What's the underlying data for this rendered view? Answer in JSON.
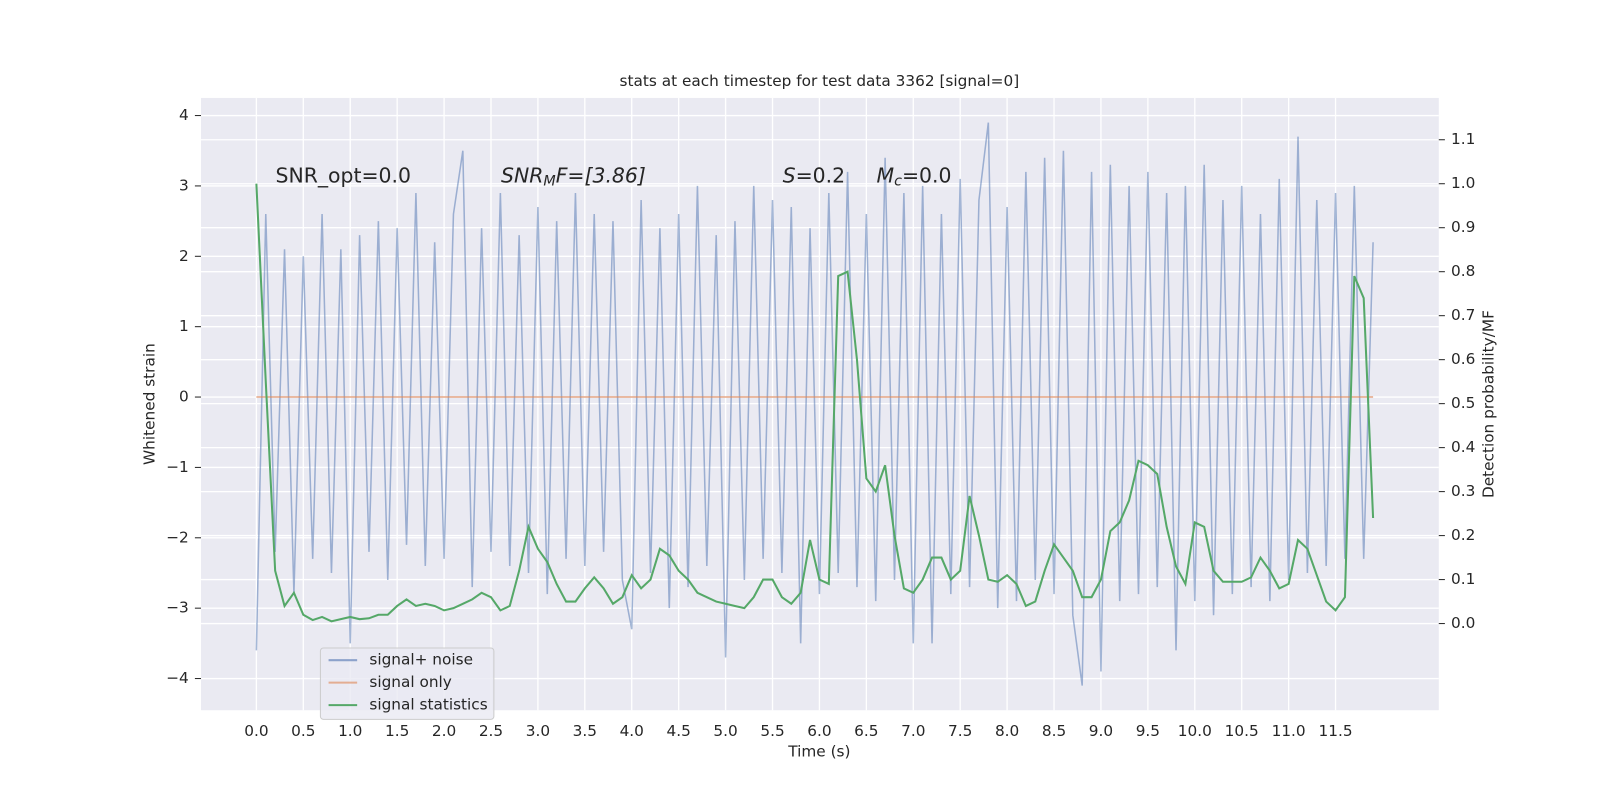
{
  "chart_data": {
    "type": "line",
    "title": "stats at each timestep for test data 3362 [signal=0]",
    "x_label": "Time (s)",
    "y_label": "Whitened strain",
    "y2_label": "Detection probability/MF",
    "annotations": [
      [
        "SNR_opt=0.0"
      ],
      [
        "SNR",
        "M",
        "F=[3.86]"
      ],
      [
        "S",
        "=0.2"
      ],
      [
        "M",
        "c",
        "=0.0"
      ]
    ],
    "xlim": [
      -0.59,
      12.6
    ],
    "ylim": [
      -4.45,
      4.25
    ],
    "y2lim": [
      -0.197,
      1.195
    ],
    "xticks": [
      {
        "value": 0,
        "label": "0.0"
      },
      0.5,
      {
        "value": 1,
        "label": "1.0"
      },
      1.5,
      {
        "value": 2,
        "label": "2.0"
      },
      2.5,
      {
        "value": 3,
        "label": "3.0"
      },
      3.5,
      {
        "value": 4,
        "label": "4.0"
      },
      4.5,
      {
        "value": 5,
        "label": "5.0"
      },
      5.5,
      {
        "value": 6,
        "label": "6.0"
      },
      6.5,
      {
        "value": 7,
        "label": "7.0"
      },
      7.5,
      {
        "value": 8,
        "label": "8.0"
      },
      8.5,
      {
        "value": 9,
        "label": "9.0"
      },
      9.5,
      {
        "value": 10,
        "label": "10.0"
      },
      10.5,
      {
        "value": 11,
        "label": "11.0"
      },
      11.5
    ],
    "yticks": [
      {
        "value": -4,
        "label": "−4"
      },
      {
        "value": -3,
        "label": "−3"
      },
      {
        "value": -2,
        "label": "−2"
      },
      {
        "value": -1,
        "label": "−1"
      },
      0,
      1,
      2,
      3,
      4
    ],
    "y2ticks": [
      {
        "value": 0,
        "label": "0.0"
      },
      0.1,
      0.2,
      0.3,
      0.4,
      0.5,
      0.6,
      0.7,
      0.8,
      0.9,
      {
        "value": 1,
        "label": "1.0"
      },
      1.1
    ],
    "grid": true,
    "legend": "lower left",
    "x": [
      0,
      0.1,
      0.2,
      0.3,
      0.4,
      0.5,
      0.6,
      0.7,
      0.8,
      0.9,
      1,
      1.1,
      1.2,
      1.3,
      1.4,
      1.5,
      1.6,
      1.7,
      1.8,
      1.9,
      2,
      2.1,
      2.2,
      2.3,
      2.4,
      2.5,
      2.6,
      2.7,
      2.8,
      2.9,
      3,
      3.1,
      3.2,
      3.3,
      3.4,
      3.5,
      3.6,
      3.7,
      3.8,
      3.9,
      4,
      4.1,
      4.2,
      4.3,
      4.4,
      4.5,
      4.6,
      4.7,
      4.8,
      4.9,
      5,
      5.1,
      5.2,
      5.3,
      5.4,
      5.5,
      5.6,
      5.7,
      5.8,
      5.9,
      6,
      6.1,
      6.2,
      6.3,
      6.4,
      6.5,
      6.6,
      6.7,
      6.8,
      6.9,
      7,
      7.1,
      7.2,
      7.3,
      7.4,
      7.5,
      7.6,
      7.7,
      7.8,
      7.9,
      8,
      8.1,
      8.2,
      8.3,
      8.4,
      8.5,
      8.6,
      8.7,
      8.8,
      8.9,
      9,
      9.1,
      9.2,
      9.3,
      9.4,
      9.5,
      9.6,
      9.7,
      9.8,
      9.9,
      10,
      10.1,
      10.2,
      10.3,
      10.4,
      10.5,
      10.6,
      10.7,
      10.8,
      10.9,
      11,
      11.1,
      11.2,
      11.3,
      11.4,
      11.5,
      11.6,
      11.7,
      11.8,
      11.9
    ],
    "series": [
      {
        "name": "signal+ noise",
        "color": "#4c72b0",
        "values": [
          -3.6,
          2.6,
          -2.2,
          2.1,
          -2.8,
          2.0,
          -2.3,
          2.6,
          -2.5,
          2.1,
          -3.5,
          2.3,
          -2.2,
          2.5,
          -2.6,
          2.4,
          -2.1,
          2.9,
          -2.4,
          2.2,
          -2.3,
          2.6,
          3.5,
          -2.7,
          2.4,
          -2.2,
          2.9,
          -2.4,
          2.3,
          -2.5,
          2.7,
          -2.8,
          2.5,
          -2.3,
          2.9,
          -2.4,
          2.6,
          -2.2,
          2.5,
          -2.6,
          -3.3,
          2.8,
          -2.5,
          2.4,
          -3.0,
          2.6,
          -2.7,
          3.0,
          -2.4,
          2.3,
          -3.7,
          2.5,
          -2.6,
          3.0,
          -2.3,
          2.8,
          -2.5,
          2.7,
          -3.5,
          2.4,
          -2.8,
          2.9,
          -2.5,
          3.2,
          -2.7,
          2.6,
          -2.9,
          3.4,
          -2.6,
          2.9,
          -3.5,
          3.0,
          -3.5,
          2.6,
          -2.8,
          3.1,
          -2.7,
          2.8,
          3.9,
          -3.0,
          2.7,
          -2.9,
          3.2,
          -2.6,
          3.4,
          -2.8,
          3.5,
          -3.1,
          -4.1,
          3.2,
          -3.9,
          3.3,
          -2.9,
          3.0,
          -2.8,
          3.2,
          -2.7,
          2.9,
          -3.6,
          3.0,
          -2.9,
          3.3,
          -3.1,
          2.8,
          -2.8,
          3.0,
          -2.7,
          2.6,
          -2.9,
          3.1,
          -2.6,
          3.7,
          -2.5,
          2.8,
          -2.4,
          2.9,
          -2.3,
          3.0,
          -2.3,
          2.2
        ]
      },
      {
        "name": "signal only",
        "color": "#dd8452",
        "values": [
          0,
          0,
          0,
          0,
          0,
          0,
          0,
          0,
          0,
          0,
          0,
          0,
          0,
          0,
          0,
          0,
          0,
          0,
          0,
          0,
          0,
          0,
          0,
          0,
          0,
          0,
          0,
          0,
          0,
          0,
          0,
          0,
          0,
          0,
          0,
          0,
          0,
          0,
          0,
          0,
          0,
          0,
          0,
          0,
          0,
          0,
          0,
          0,
          0,
          0,
          0,
          0,
          0,
          0,
          0,
          0,
          0,
          0,
          0,
          0,
          0,
          0,
          0,
          0,
          0,
          0,
          0,
          0,
          0,
          0,
          0,
          0,
          0,
          0,
          0,
          0,
          0,
          0,
          0,
          0,
          0,
          0,
          0,
          0,
          0,
          0,
          0,
          0,
          0,
          0,
          0,
          0,
          0,
          0,
          0,
          0,
          0,
          0,
          0,
          0,
          0,
          0,
          0,
          0,
          0,
          0,
          0,
          0,
          0,
          0,
          0,
          0,
          0,
          0,
          0,
          0,
          0,
          0,
          0,
          0
        ]
      },
      {
        "name": "signal statistics",
        "color": "#55a868",
        "axis": "y2",
        "values": [
          1.0,
          0.55,
          0.12,
          0.04,
          0.07,
          0.02,
          0.008,
          0.015,
          0.005,
          0.01,
          0.015,
          0.01,
          0.012,
          0.02,
          0.02,
          0.04,
          0.055,
          0.04,
          0.045,
          0.04,
          0.03,
          0.035,
          0.045,
          0.055,
          0.07,
          0.06,
          0.03,
          0.04,
          0.12,
          0.22,
          0.17,
          0.14,
          0.09,
          0.05,
          0.05,
          0.08,
          0.105,
          0.08,
          0.045,
          0.06,
          0.11,
          0.08,
          0.1,
          0.17,
          0.155,
          0.12,
          0.1,
          0.07,
          0.06,
          0.05,
          0.045,
          0.04,
          0.035,
          0.06,
          0.1,
          0.1,
          0.06,
          0.045,
          0.07,
          0.19,
          0.1,
          0.09,
          0.79,
          0.8,
          0.6,
          0.33,
          0.3,
          0.36,
          0.2,
          0.08,
          0.07,
          0.1,
          0.15,
          0.15,
          0.1,
          0.12,
          0.29,
          0.2,
          0.1,
          0.095,
          0.11,
          0.09,
          0.04,
          0.05,
          0.12,
          0.18,
          0.15,
          0.12,
          0.06,
          0.06,
          0.1,
          0.21,
          0.23,
          0.28,
          0.37,
          0.36,
          0.34,
          0.22,
          0.13,
          0.09,
          0.23,
          0.22,
          0.12,
          0.095,
          0.095,
          0.095,
          0.105,
          0.15,
          0.12,
          0.08,
          0.09,
          0.19,
          0.17,
          0.11,
          0.05,
          0.03,
          0.06,
          0.79,
          0.74,
          0.24
        ]
      }
    ]
  }
}
